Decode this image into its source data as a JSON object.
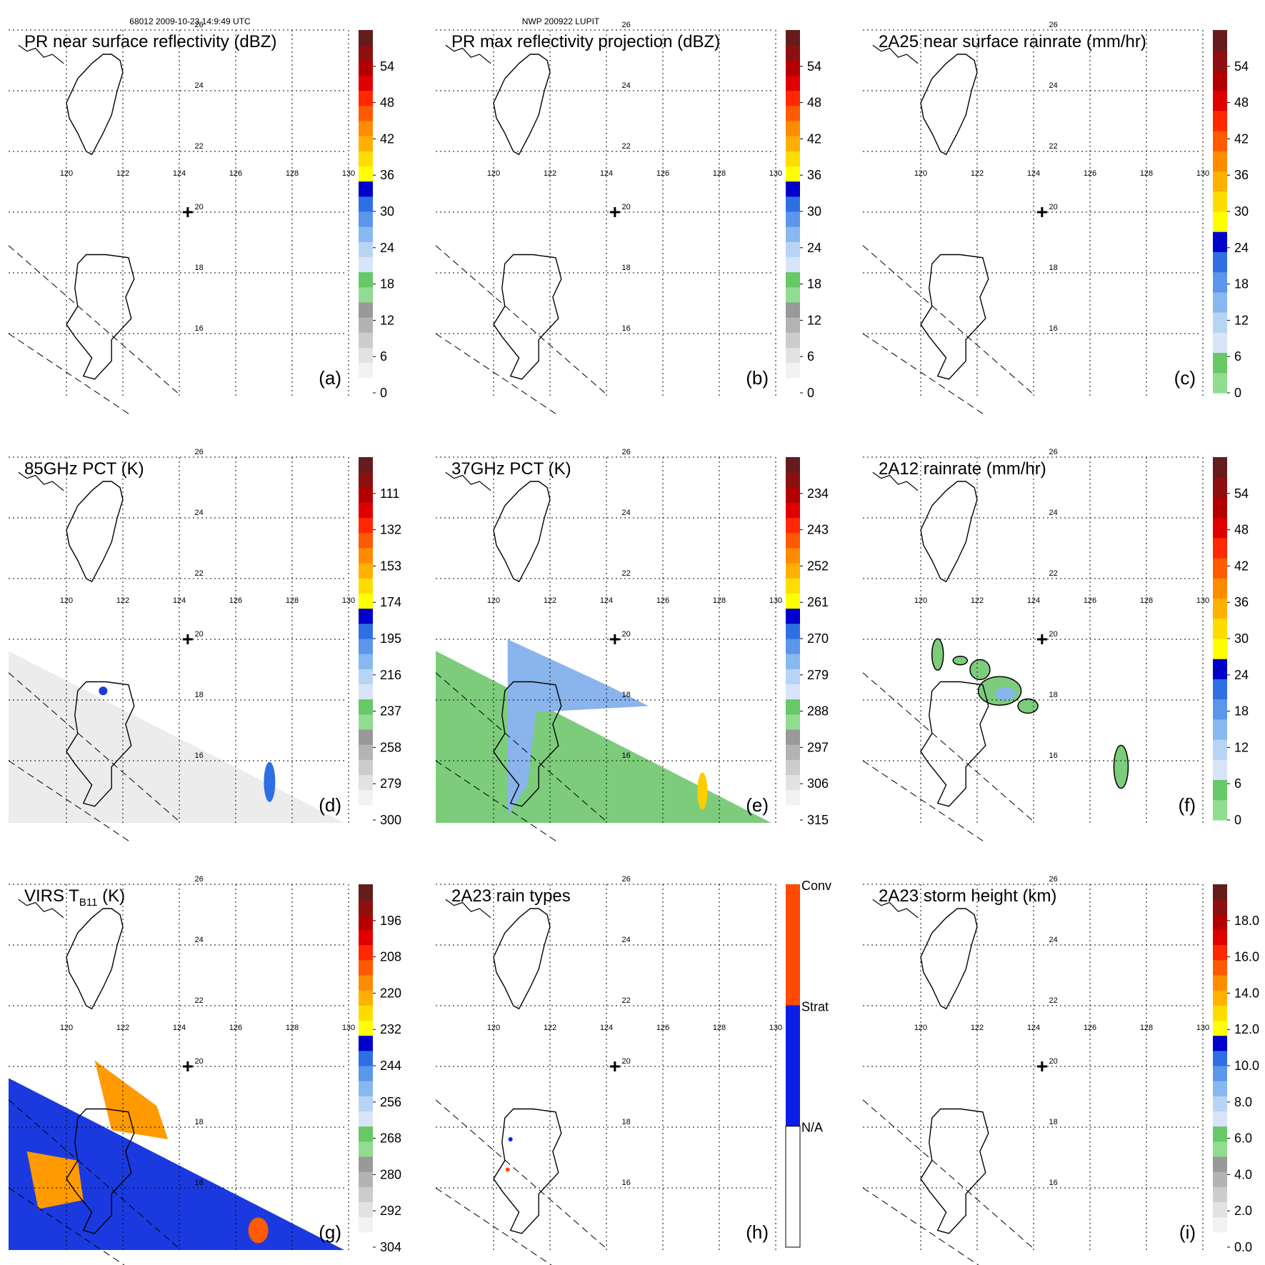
{
  "figure": {
    "header_left": "68012 2009-10-23 14:9:49 UTC",
    "header_center": "NWP 200922 LUPIT"
  },
  "map_grid": {
    "lon_labels": [
      "120",
      "122",
      "124",
      "126",
      "128",
      "130"
    ],
    "lat_labels": [
      "26",
      "24",
      "22",
      "20",
      "18",
      "16"
    ]
  },
  "colors": {
    "dbz_scale": [
      "#ffffff",
      "#f2f2f2",
      "#e2e2e2",
      "#cccccc",
      "#b3b3b3",
      "#999999",
      "#90dc90",
      "#66c866",
      "#d8e4f8",
      "#b8d4f4",
      "#88b8f0",
      "#5a96ea",
      "#2f6fe4",
      "#0000cc",
      "#ffff00",
      "#ffdc00",
      "#ffb000",
      "#ff8c00",
      "#ff5a00",
      "#ff2800",
      "#e00000",
      "#b40000",
      "#8c1010",
      "#641c1c"
    ],
    "rain_scale": [
      "#90dc90",
      "#66c866",
      "#d8e4f8",
      "#b8d4f4",
      "#88b8f0",
      "#5a96ea",
      "#2f6fe4",
      "#0000cc",
      "#ffff00",
      "#ffdc00",
      "#ffb000",
      "#ff8c00",
      "#ff5a00",
      "#ff2800",
      "#e00000",
      "#b40000",
      "#8c1010",
      "#641c1c"
    ],
    "rain_types": [
      "#ffffff",
      "#0a1ee6",
      "#ff4a00"
    ],
    "pct_green": "#7ccc7c",
    "pct_blue": "#8ab4ec",
    "virs_orange": "#ff9a00",
    "virs_blue": "#1a3adf"
  },
  "chart_data": [
    {
      "id": "a",
      "type": "heatmap",
      "title": "PR near surface reflectivity (dBZ)",
      "tag": "(a)",
      "colorbar": {
        "scale": "dbz",
        "ticks": [
          "54",
          "48",
          "42",
          "36",
          "30",
          "24",
          "18",
          "12",
          "6",
          "0"
        ]
      },
      "storm_center": {
        "lon": 124.3,
        "lat": 20.0
      }
    },
    {
      "id": "b",
      "type": "heatmap",
      "title": "PR max reflectivity projection (dBZ)",
      "tag": "(b)",
      "colorbar": {
        "scale": "dbz",
        "ticks": [
          "54",
          "48",
          "42",
          "36",
          "30",
          "24",
          "18",
          "12",
          "6",
          "0"
        ]
      },
      "storm_center": {
        "lon": 124.3,
        "lat": 20.0
      }
    },
    {
      "id": "c",
      "type": "heatmap",
      "title": "2A25 near surface rainrate (mm/hr)",
      "tag": "(c)",
      "colorbar": {
        "scale": "rain",
        "ticks": [
          "54",
          "48",
          "42",
          "36",
          "30",
          "24",
          "18",
          "12",
          "6",
          "0"
        ]
      },
      "storm_center": {
        "lon": 124.3,
        "lat": 20.0
      }
    },
    {
      "id": "d",
      "type": "heatmap",
      "title": "85GHz PCT (K)",
      "tag": "(d)",
      "colorbar": {
        "scale": "dbz",
        "ticks": [
          "111",
          "132",
          "153",
          "174",
          "195",
          "216",
          "237",
          "258",
          "279",
          "300"
        ]
      },
      "storm_center": {
        "lon": 124.3,
        "lat": 20.0
      }
    },
    {
      "id": "e",
      "type": "heatmap",
      "title": "37GHz PCT (K)",
      "tag": "(e)",
      "colorbar": {
        "scale": "dbz",
        "ticks": [
          "234",
          "243",
          "252",
          "261",
          "270",
          "279",
          "288",
          "297",
          "306",
          "315"
        ]
      },
      "storm_center": {
        "lon": 124.3,
        "lat": 20.0
      }
    },
    {
      "id": "f",
      "type": "heatmap",
      "title": "2A12 rainrate (mm/hr)",
      "tag": "(f)",
      "colorbar": {
        "scale": "rain",
        "ticks": [
          "54",
          "48",
          "42",
          "36",
          "30",
          "24",
          "18",
          "12",
          "6",
          "0"
        ]
      },
      "storm_center": {
        "lon": 124.3,
        "lat": 20.0
      }
    },
    {
      "id": "g",
      "type": "heatmap",
      "title": "VIRS T",
      "title_sub": "B11",
      "title_tail": " (K)",
      "tag": "(g)",
      "colorbar": {
        "scale": "dbz",
        "ticks": [
          "196",
          "208",
          "220",
          "232",
          "244",
          "256",
          "268",
          "280",
          "292",
          "304"
        ]
      },
      "storm_center": {
        "lon": 124.3,
        "lat": 20.0
      }
    },
    {
      "id": "h",
      "type": "heatmap",
      "title": "2A23 rain types",
      "tag": "(h)",
      "colorbar": {
        "scale": "types",
        "ticks": [
          "Conv",
          "Strat",
          "N/A"
        ]
      },
      "storm_center": {
        "lon": 124.3,
        "lat": 20.0
      }
    },
    {
      "id": "i",
      "type": "heatmap",
      "title": "2A23 storm height (km)",
      "tag": "(i)",
      "colorbar": {
        "scale": "dbz",
        "ticks": [
          "18.0",
          "16.0",
          "14.0",
          "12.0",
          "10.0",
          "8.0",
          "6.0",
          "4.0",
          "2.0",
          "0.0"
        ]
      },
      "storm_center": {
        "lon": 124.3,
        "lat": 20.0
      }
    }
  ]
}
